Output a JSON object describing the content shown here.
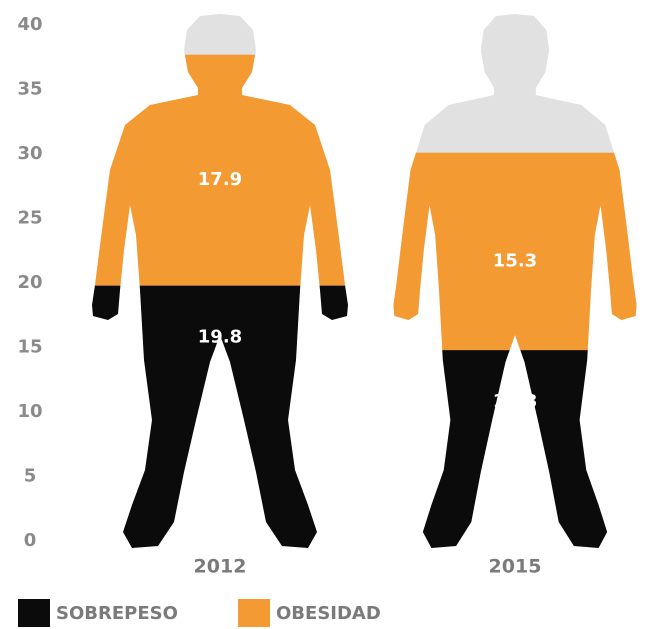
{
  "chart_data": {
    "type": "stacked-pictograph",
    "categories": [
      "2012",
      "2015"
    ],
    "series": [
      {
        "name": "SOBREPESO",
        "color": "#0b0b0b",
        "values": [
          19.8,
          14.8
        ]
      },
      {
        "name": "OBESIDAD",
        "color": "#f39a32",
        "values": [
          17.9,
          15.3
        ]
      }
    ],
    "ylim": [
      0,
      40
    ],
    "yticks": [
      0,
      5,
      10,
      15,
      20,
      25,
      30,
      35,
      40
    ]
  }
}
